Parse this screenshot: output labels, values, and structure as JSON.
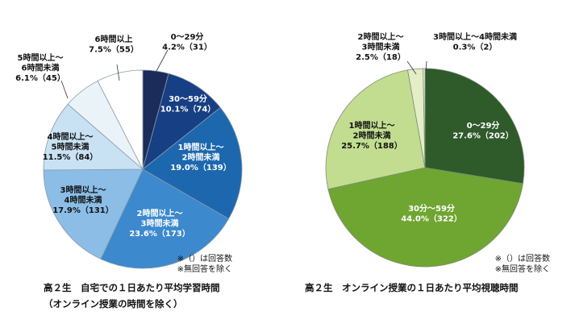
{
  "chart_data": [
    {
      "type": "pie",
      "title": "高２生　自宅での１日あたり平均学習時間",
      "subtitle": "（オンライン授業の時間を除く）",
      "note": [
        "※（）は回答数",
        "※無回答を除く"
      ],
      "slices": [
        {
          "label": [
            "0～29分"
          ],
          "pct": "4.2%",
          "n": "（31）",
          "value": 4.2,
          "color": "#1b2c5a"
        },
        {
          "label": [
            "30～59分"
          ],
          "pct": "10.1%",
          "n": "（74）",
          "value": 10.1,
          "color": "#173f84"
        },
        {
          "label": [
            "1時間以上～",
            "2時間未満"
          ],
          "pct": "19.0%",
          "n": "（139）",
          "value": 19.0,
          "color": "#1d67ae"
        },
        {
          "label": [
            "2時間以上～",
            "3時間未満"
          ],
          "pct": "23.6%",
          "n": "（173）",
          "value": 23.6,
          "color": "#3c89cd"
        },
        {
          "label": [
            "3時間以上～",
            "4時間未満"
          ],
          "pct": "17.9%",
          "n": "（131）",
          "value": 17.9,
          "color": "#8bbde6"
        },
        {
          "label": [
            "4時間以上～",
            "5時間未満"
          ],
          "pct": "11.5%",
          "n": "（84）",
          "value": 11.5,
          "color": "#c8e2f3"
        },
        {
          "label": [
            "5時間以上～",
            "6時間未満"
          ],
          "pct": "6.1%",
          "n": "（45）",
          "value": 6.1,
          "color": "#eaf3f8"
        },
        {
          "label": [
            "6時間以上"
          ],
          "pct": "7.5%",
          "n": "（55）",
          "value": 7.5,
          "color": "#ffffff"
        }
      ]
    },
    {
      "type": "pie",
      "title": "高２生　オンライン授業の１日あたり平均視聴時間",
      "note": [
        "※（）は回答数",
        "※無回答を除く"
      ],
      "slices": [
        {
          "label": [
            "0～29分"
          ],
          "pct": "27.6%",
          "n": "（202）",
          "value": 27.6,
          "color": "#2f5a2a"
        },
        {
          "label": [
            "30分～59分"
          ],
          "pct": "44.0%",
          "n": "（322）",
          "value": 44.0,
          "color": "#6fa531"
        },
        {
          "label": [
            "1時間以上～",
            "2時間未満"
          ],
          "pct": "25.7%",
          "n": "（188）",
          "value": 25.7,
          "color": "#c2dd8f"
        },
        {
          "label": [
            "2時間以上～",
            "3時間未満"
          ],
          "pct": "2.5%",
          "n": "（18）",
          "value": 2.5,
          "color": "#e3eec6"
        },
        {
          "label": [
            "3時間以上～4時間未満"
          ],
          "pct": "0.3%",
          "n": "（2）",
          "value": 0.3,
          "color": "#f4f8e8"
        }
      ]
    }
  ]
}
